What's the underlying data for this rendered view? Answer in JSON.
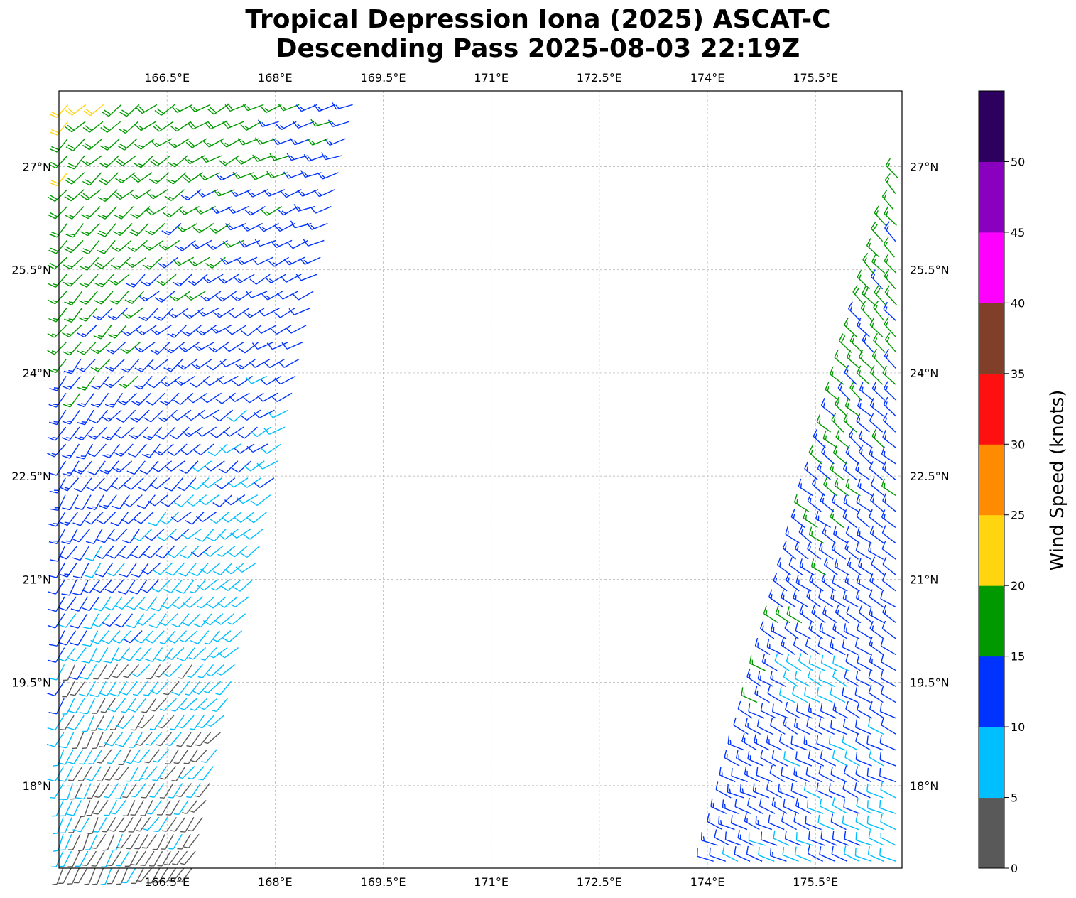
{
  "title": {
    "line1": "Tropical Depression Iona (2025) ASCAT-C",
    "line2": "Descending Pass 2025-08-03 22:19Z"
  },
  "map": {
    "lon_range": [
      165.0,
      176.7
    ],
    "lat_range": [
      16.8,
      28.1
    ],
    "lon_ticks": [
      {
        "value": 166.5,
        "label": "166.5°E"
      },
      {
        "value": 168.0,
        "label": "168°E"
      },
      {
        "value": 169.5,
        "label": "169.5°E"
      },
      {
        "value": 171.0,
        "label": "171°E"
      },
      {
        "value": 172.5,
        "label": "172.5°E"
      },
      {
        "value": 174.0,
        "label": "174°E"
      },
      {
        "value": 175.5,
        "label": "175.5°E"
      }
    ],
    "lat_ticks": [
      {
        "value": 27.0,
        "label": "27°N"
      },
      {
        "value": 25.5,
        "label": "25.5°N"
      },
      {
        "value": 24.0,
        "label": "24°N"
      },
      {
        "value": 22.5,
        "label": "22.5°N"
      },
      {
        "value": 21.0,
        "label": "21°N"
      },
      {
        "value": 19.5,
        "label": "19.5°N"
      },
      {
        "value": 18.0,
        "label": "18°N"
      }
    ],
    "gridlines": true,
    "swaths": [
      {
        "name": "west",
        "bottom_lon": [
          165.0,
          166.9
        ],
        "top_lon": [
          165.0,
          169.2
        ]
      },
      {
        "name": "east",
        "bottom_lon": [
          174.0,
          176.7
        ],
        "top_lon": [
          176.7,
          176.7
        ],
        "lat_top": 27.3
      }
    ]
  },
  "colorbar": {
    "label": "Wind Speed (knots)",
    "bins": [
      {
        "min": 0,
        "max": 5,
        "color": "#595959"
      },
      {
        "min": 5,
        "max": 10,
        "color": "#00bfff"
      },
      {
        "min": 10,
        "max": 15,
        "color": "#0033ff"
      },
      {
        "min": 15,
        "max": 20,
        "color": "#009900"
      },
      {
        "min": 20,
        "max": 25,
        "color": "#ffd510"
      },
      {
        "min": 25,
        "max": 30,
        "color": "#ff8c00"
      },
      {
        "min": 30,
        "max": 35,
        "color": "#ff1010"
      },
      {
        "min": 35,
        "max": 40,
        "color": "#7f3f28"
      },
      {
        "min": 40,
        "max": 45,
        "color": "#ff00ff"
      },
      {
        "min": 45,
        "max": 50,
        "color": "#8a00bf"
      },
      {
        "min": 50,
        "max": 55,
        "color": "#2d005f"
      }
    ],
    "tick_values": [
      0,
      5,
      10,
      15,
      20,
      25,
      30,
      35,
      40,
      45,
      50
    ],
    "tick_labels": [
      "0",
      "5",
      "10",
      "15",
      "20",
      "25",
      "30",
      "35",
      "40",
      "45",
      "50"
    ]
  }
}
